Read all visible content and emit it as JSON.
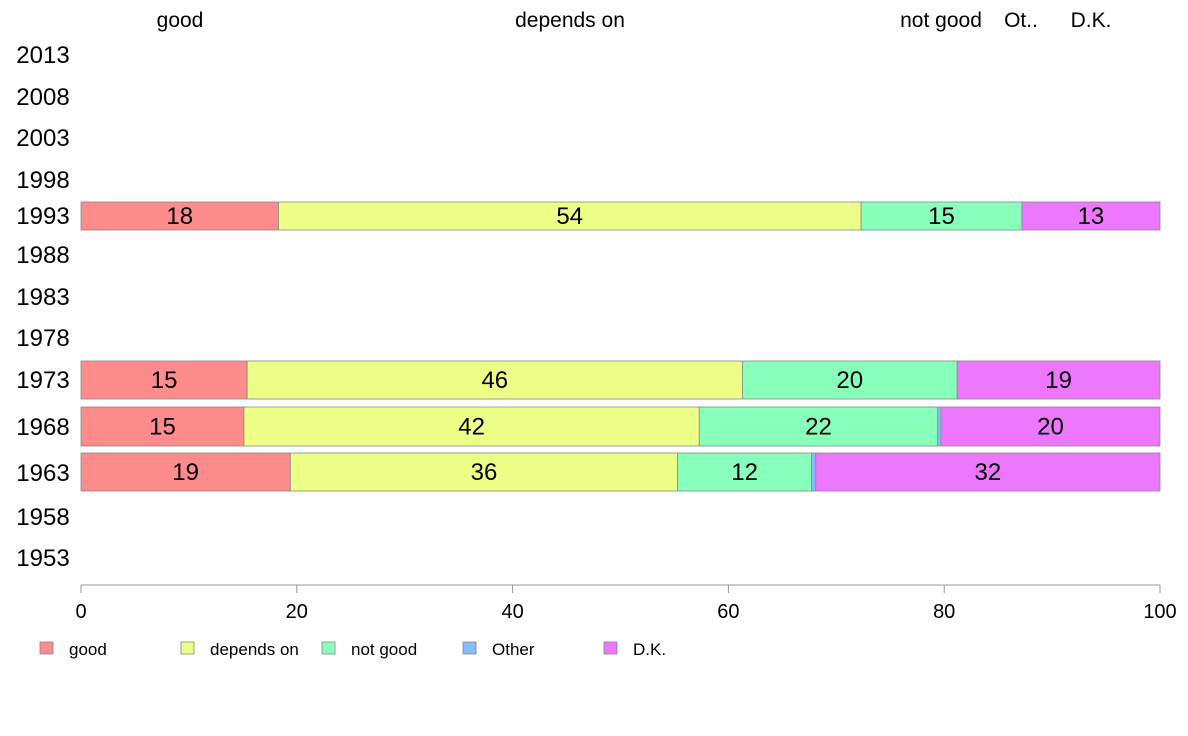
{
  "chart_data": {
    "type": "bar",
    "orientation": "horizontal",
    "stacked": true,
    "title": "",
    "xlabel": "",
    "ylabel": "",
    "xlim": [
      0,
      100
    ],
    "x_ticks": [
      0,
      20,
      40,
      60,
      80,
      100
    ],
    "grid": false,
    "legend_position": "bottom",
    "top_labels": [
      "good",
      "depends on",
      "not good",
      "Ot..",
      "D.K."
    ],
    "categories": [
      "2013",
      "2008",
      "2003",
      "1998",
      "1993",
      "1988",
      "1983",
      "1978",
      "1973",
      "1968",
      "1963",
      "1958",
      "1953"
    ],
    "series": [
      {
        "name": "good",
        "color": "#ff8c8c",
        "values": [
          null,
          null,
          null,
          null,
          18.3,
          null,
          null,
          null,
          15.4,
          15.1,
          19.4,
          null,
          null
        ]
      },
      {
        "name": "depends on",
        "color": "#eeff88",
        "values": [
          null,
          null,
          null,
          null,
          54.0,
          null,
          null,
          null,
          45.9,
          42.2,
          35.9,
          null,
          null
        ]
      },
      {
        "name": "not good",
        "color": "#88ffbb",
        "values": [
          null,
          null,
          null,
          null,
          14.9,
          null,
          null,
          null,
          19.9,
          22.1,
          12.4,
          null,
          null
        ]
      },
      {
        "name": "Other",
        "color": "#88bbff",
        "values": [
          null,
          null,
          null,
          null,
          0,
          null,
          null,
          null,
          0,
          0.3,
          0.4,
          null,
          null
        ]
      },
      {
        "name": "D.K.",
        "color": "#ee77ff",
        "values": [
          null,
          null,
          null,
          null,
          12.8,
          null,
          null,
          null,
          18.8,
          20.3,
          31.9,
          null,
          null
        ]
      }
    ],
    "data_labels": {
      "1993": [
        "18",
        "54",
        "15",
        "",
        "13"
      ],
      "1973": [
        "15",
        "46",
        "20",
        "",
        "19"
      ],
      "1968": [
        "15",
        "42",
        "22",
        "",
        "20"
      ],
      "1963": [
        "19",
        "36",
        "12",
        "",
        "32"
      ]
    }
  }
}
